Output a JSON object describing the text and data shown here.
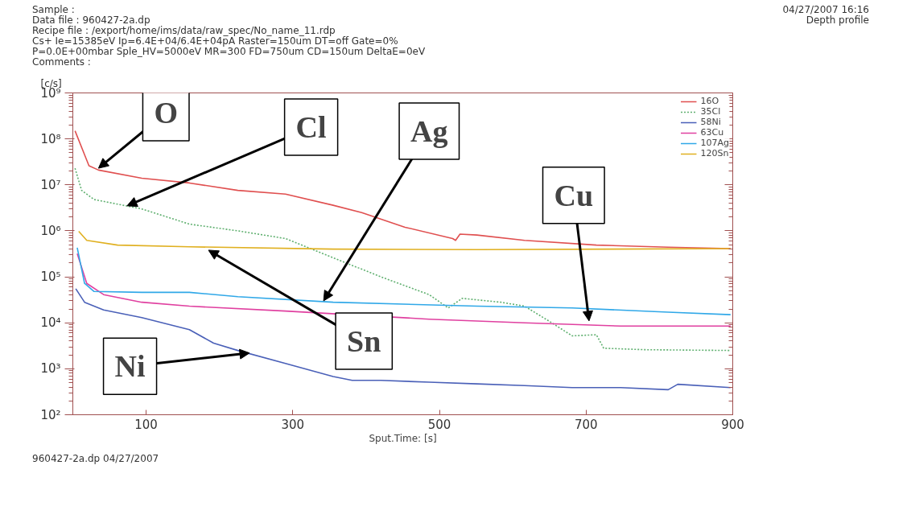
{
  "chart_data": {
    "type": "line",
    "title": "Depth profile",
    "subtitle": "04/27/2007 16:16",
    "xlabel": "Sput.Time: [s]",
    "ylabel": "[c/s]",
    "log": "y",
    "grid": false,
    "legend": "top right",
    "marker": "none",
    "xlim": [
      0,
      900
    ],
    "xticks": [
      100,
      300,
      500,
      700,
      900
    ],
    "ylim": [
      100,
      1000000000
    ],
    "yticks": [
      {
        "value": 100,
        "label": "10²"
      },
      {
        "value": 1000,
        "label": "10³"
      },
      {
        "value": 10000,
        "label": "10⁴"
      },
      {
        "value": 100000,
        "label": "10⁵"
      },
      {
        "value": 1000000,
        "label": "10⁶"
      },
      {
        "value": 10000000,
        "label": "10⁷"
      },
      {
        "value": 100000000,
        "label": "10⁸"
      },
      {
        "value": 1000000000,
        "label": "10⁹"
      }
    ],
    "series": [
      {
        "name": "16O",
        "color": "#e05050",
        "line_style": "solid",
        "x": [
          3,
          22,
          35,
          94,
          159,
          225,
          290,
          355,
          394,
          453,
          518,
          522,
          528,
          551,
          616,
          714,
          812,
          897
        ],
        "values": [
          150000000,
          26000000,
          21000000,
          14000000,
          11000000,
          7600000,
          6300000,
          3600000,
          2500000,
          1200000,
          680000,
          620000,
          850000,
          810000,
          620000,
          490000,
          440000,
          410000
        ]
      },
      {
        "name": "35Cl",
        "color": "#60b070",
        "line_style": "dotted",
        "x": [
          3,
          12,
          29,
          94,
          159,
          225,
          290,
          355,
          420,
          486,
          512,
          531,
          584,
          616,
          649,
          681,
          714,
          724,
          779,
          897
        ],
        "values": [
          23000000,
          7600000,
          4800000,
          3000000,
          1400000,
          1000000,
          680000,
          260000,
          100000,
          41000,
          21000,
          34000,
          28000,
          23000,
          11000,
          5200,
          5500,
          2800,
          2600,
          2500
        ]
      },
      {
        "name": "58Ni",
        "color": "#4a60b8",
        "line_style": "solid",
        "x": [
          4,
          16,
          42,
          94,
          159,
          192,
          225,
          290,
          355,
          381,
          420,
          486,
          551,
          616,
          681,
          747,
          812,
          825,
          897
        ],
        "values": [
          55000,
          28000,
          19000,
          13000,
          7100,
          3600,
          2500,
          1300,
          680,
          560,
          560,
          510,
          470,
          430,
          390,
          390,
          350,
          460,
          390
        ]
      },
      {
        "name": "63Cu",
        "color": "#e040a0",
        "line_style": "solid",
        "x": [
          6,
          19,
          42,
          94,
          159,
          290,
          486,
          616,
          747,
          897
        ],
        "values": [
          320000,
          72000,
          41000,
          28000,
          23000,
          18000,
          12000,
          10000,
          8500,
          8500
        ]
      },
      {
        "name": "107Ag",
        "color": "#30a8e8",
        "line_style": "solid",
        "x": [
          6,
          16,
          29,
          94,
          159,
          225,
          355,
          551,
          681,
          812,
          897
        ],
        "values": [
          430000,
          72000,
          48000,
          46000,
          46000,
          37000,
          28000,
          23000,
          21000,
          17000,
          15000
        ]
      },
      {
        "name": "120Sn",
        "color": "#e0b020",
        "line_style": "solid",
        "x": [
          8,
          19,
          61,
          159,
          355,
          551,
          897
        ],
        "values": [
          980000,
          620000,
          490000,
          450000,
          400000,
          390000,
          410000
        ]
      }
    ],
    "annotations": [
      "Sample :",
      "Data file : 960427-2a.dp",
      "Recipe file : /export/home/ims/data/raw_spec/No_name_11.rdp",
      "Cs+ Ie=15385eV Ip=6.4E+04/6.4E+04pA Raster=150um DT=off Gate=0%",
      "P=0.0E+00mbar Sple_HV=5000eV MR=300 FD=750um CD=150um DeltaE=0eV",
      "Comments :",
      "960427-2a.dp 04/27/2007",
      {
        "text": "O",
        "x": 35,
        "y": 23000000
      },
      {
        "text": "Cl",
        "x": 74,
        "y": 3500000
      },
      {
        "text": "Ag",
        "x": 342,
        "y": 30000
      },
      {
        "text": "Cu",
        "x": 704,
        "y": 11000
      },
      {
        "text": "Sn",
        "x": 185,
        "y": 380000
      },
      {
        "text": "Ni",
        "x": 241,
        "y": 2200
      }
    ]
  }
}
